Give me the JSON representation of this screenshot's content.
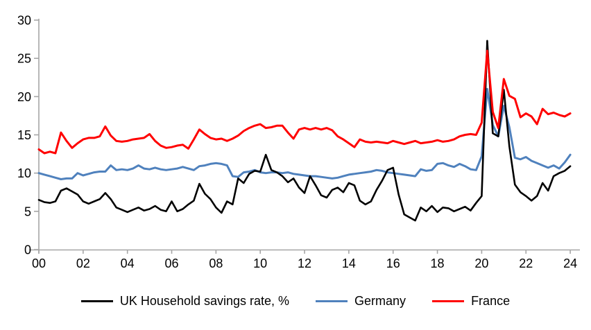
{
  "chart_data": {
    "type": "line",
    "title": "",
    "xlabel": "",
    "ylabel": "",
    "x_start": 2000,
    "x_step": 0.25,
    "xlim": [
      2000,
      2024.4
    ],
    "ylim": [
      0,
      30
    ],
    "grid": false,
    "legend_position": "bottom-center",
    "axis_color": "#a6a6a6",
    "text_color": "#000000",
    "y_ticks": [
      0,
      5,
      10,
      15,
      20,
      25,
      30
    ],
    "x_tick_labels": [
      "00",
      "02",
      "04",
      "06",
      "08",
      "10",
      "12",
      "14",
      "16",
      "18",
      "20",
      "22",
      "24"
    ],
    "series": [
      {
        "name": "UK Household savings rate, %",
        "color": "#000000",
        "stroke_width": 2.6,
        "values": [
          6.5,
          6.2,
          6.1,
          6.3,
          7.7,
          8.0,
          7.6,
          7.2,
          6.3,
          6.0,
          6.3,
          6.6,
          7.4,
          6.6,
          5.5,
          5.2,
          4.9,
          5.2,
          5.5,
          5.1,
          5.3,
          5.7,
          5.2,
          5.0,
          6.3,
          5.0,
          5.3,
          5.9,
          6.4,
          8.6,
          7.3,
          6.6,
          5.5,
          4.8,
          6.3,
          5.9,
          9.3,
          8.7,
          9.9,
          10.3,
          10.2,
          12.4,
          10.4,
          10.1,
          9.6,
          8.8,
          9.3,
          8.1,
          7.4,
          9.6,
          8.4,
          7.1,
          6.8,
          7.8,
          8.1,
          7.5,
          8.7,
          8.4,
          6.4,
          5.9,
          6.3,
          7.8,
          9.0,
          10.4,
          10.7,
          7.2,
          4.6,
          4.2,
          3.8,
          5.5,
          5.0,
          5.7,
          4.9,
          5.5,
          5.4,
          5.0,
          5.3,
          5.6,
          5.1,
          6.1,
          7.0,
          27.3,
          15.2,
          14.8,
          20.9,
          13.5,
          8.5,
          7.5,
          7.0,
          6.4,
          7.0,
          8.7,
          7.7,
          9.6,
          10.0,
          10.3,
          10.9
        ]
      },
      {
        "name": "Germany",
        "color": "#4f81bd",
        "stroke_width": 3,
        "values": [
          10.0,
          9.8,
          9.6,
          9.4,
          9.2,
          9.3,
          9.3,
          10.0,
          9.7,
          9.9,
          10.1,
          10.2,
          10.2,
          11.0,
          10.4,
          10.5,
          10.4,
          10.6,
          11.0,
          10.6,
          10.5,
          10.7,
          10.5,
          10.4,
          10.5,
          10.6,
          10.8,
          10.6,
          10.4,
          10.9,
          11.0,
          11.2,
          11.3,
          11.2,
          11.0,
          9.6,
          9.5,
          10.1,
          10.2,
          10.4,
          10.1,
          10.0,
          10.1,
          10.1,
          10.0,
          10.1,
          9.9,
          9.8,
          9.7,
          9.6,
          9.6,
          9.5,
          9.4,
          9.3,
          9.4,
          9.6,
          9.8,
          9.9,
          10.0,
          10.1,
          10.2,
          10.4,
          10.3,
          10.1,
          10.0,
          9.9,
          9.8,
          9.7,
          9.6,
          10.5,
          10.3,
          10.4,
          11.2,
          11.3,
          11.0,
          10.8,
          11.2,
          10.9,
          10.5,
          10.4,
          12.2,
          21.0,
          16.3,
          14.8,
          18.8,
          16.0,
          12.0,
          11.8,
          12.1,
          11.6,
          11.3,
          11.0,
          10.7,
          11.0,
          10.6,
          11.4,
          12.4
        ]
      },
      {
        "name": "France",
        "color": "#ff0000",
        "stroke_width": 3,
        "values": [
          13.1,
          12.6,
          12.8,
          12.6,
          15.3,
          14.2,
          13.3,
          13.9,
          14.4,
          14.6,
          14.6,
          14.8,
          16.1,
          14.9,
          14.2,
          14.1,
          14.2,
          14.4,
          14.5,
          14.6,
          15.1,
          14.2,
          13.6,
          13.3,
          13.4,
          13.6,
          13.7,
          13.2,
          14.4,
          15.7,
          15.1,
          14.6,
          14.4,
          14.5,
          14.2,
          14.5,
          14.9,
          15.5,
          15.9,
          16.2,
          16.4,
          15.9,
          16.0,
          16.2,
          16.2,
          15.3,
          14.5,
          15.7,
          15.9,
          15.7,
          15.9,
          15.7,
          15.9,
          15.6,
          14.8,
          14.4,
          13.9,
          13.4,
          14.4,
          14.1,
          14.0,
          14.1,
          14.0,
          13.9,
          14.2,
          14.0,
          13.8,
          14.0,
          14.2,
          13.9,
          14.0,
          14.1,
          14.3,
          14.1,
          14.2,
          14.4,
          14.8,
          15.0,
          15.1,
          15.0,
          16.6,
          26.0,
          18.0,
          15.9,
          22.3,
          20.1,
          19.7,
          17.3,
          17.8,
          17.4,
          16.4,
          18.4,
          17.7,
          17.9,
          17.6,
          17.4,
          17.8
        ]
      }
    ],
    "draw_order": [
      1,
      0,
      2
    ]
  }
}
